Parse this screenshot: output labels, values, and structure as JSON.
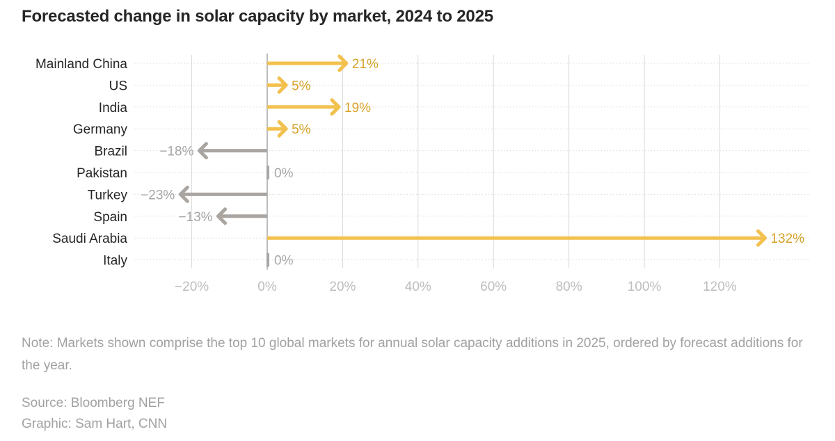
{
  "title": "Forecasted change in solar capacity by market, 2024 to 2025",
  "note": "Note: Markets shown comprise the top 10 global markets for annual solar capacity additions in 2025, ordered by forecast additions for the year.",
  "source": "Source: Bloomberg NEF",
  "credit": "Graphic: Sam Hart, CNN",
  "colors": {
    "positive": "#f2c14e",
    "positive_label": "#d7a22a",
    "negative": "#aaa5a0",
    "negative_label": "#a6a6a6",
    "zero_axis": "#a6a6a6",
    "grid": "#d9d9d9",
    "tick_label": "#bdbdbd",
    "category_label": "#262626"
  },
  "chart_data": {
    "type": "bar",
    "orientation": "horizontal",
    "bar_style": "arrow",
    "categories": [
      "Mainland China",
      "US",
      "India",
      "Germany",
      "Brazil",
      "Pakistan",
      "Turkey",
      "Spain",
      "Saudi Arabia",
      "Italy"
    ],
    "values": [
      21,
      5,
      19,
      5,
      -18,
      0,
      -23,
      -13,
      132,
      0
    ],
    "value_labels": [
      "21%",
      "5%",
      "19%",
      "5%",
      "−18%",
      "0%",
      "−23%",
      "−13%",
      "132%",
      "0%"
    ],
    "xlim": [
      -33,
      145
    ],
    "xticks": [
      -20,
      0,
      20,
      40,
      60,
      80,
      100,
      120
    ],
    "xtick_labels": [
      "−20%",
      "0%",
      "20%",
      "40%",
      "60%",
      "80%",
      "100%",
      "120%"
    ],
    "grid": true,
    "legend": false
  }
}
